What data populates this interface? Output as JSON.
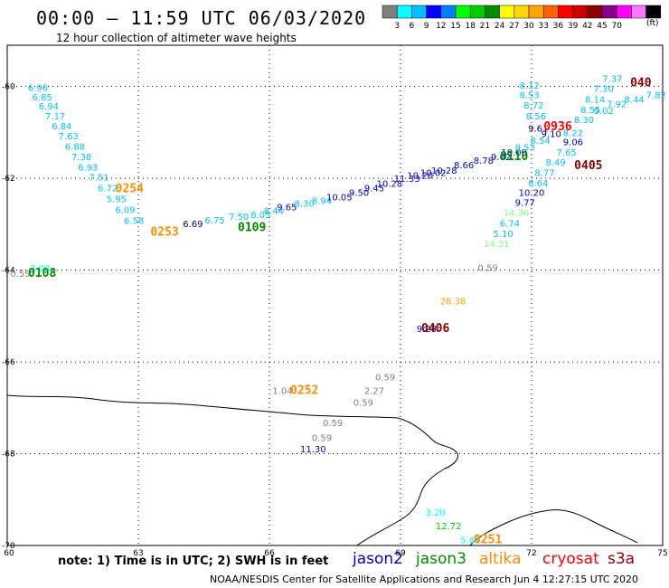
{
  "header": {
    "title": "00:00 – 11:59 UTC 06/03/2020",
    "subtitle": "12 hour collection of altimeter wave heights"
  },
  "colorbar": {
    "colors": [
      "#808080",
      "#00ffff",
      "#00bfff",
      "#0000ff",
      "#0080ff",
      "#00ff00",
      "#00cd00",
      "#008b00",
      "#ffff00",
      "#ffd700",
      "#ffa500",
      "#ff6000",
      "#ff0000",
      "#cd0000",
      "#8b0000",
      "#8b008b",
      "#ff00ff",
      "#ff77ff",
      "#000000"
    ],
    "labels": [
      "3",
      "6",
      "9",
      "12",
      "15",
      "18",
      "21",
      "24",
      "27",
      "30",
      "33",
      "36",
      "39",
      "42",
      "45",
      "70"
    ],
    "unit": "(ft)"
  },
  "axes": {
    "lon_ticks": [
      "60",
      "63",
      "66",
      "69",
      "72",
      "75"
    ],
    "lat_ticks": [
      "-60",
      "-62",
      "-64",
      "-66",
      "-68",
      "-70"
    ],
    "lon_range": [
      60,
      75
    ],
    "lat_range": [
      -70,
      -59.1
    ]
  },
  "footer": {
    "note": "note: 1) Time is in UTC; 2) SWH is in feet",
    "credit": "NOAA/NESDIS Center for Satellite Applications and Research   Jun  4 12:27:15 UTC 2020",
    "missions": [
      {
        "name": "jason2",
        "color": "#0000cd"
      },
      {
        "name": "jason3",
        "color": "#008b00"
      },
      {
        "name": "altika",
        "color": "#ff8c00"
      },
      {
        "name": "cryosat",
        "color": "#ff0000"
      },
      {
        "name": "s3a",
        "color": "#8b0000"
      }
    ]
  },
  "time_labels": [
    {
      "text": "0254",
      "lon": 62.8,
      "lat": -62.3,
      "color": "#ff8c00"
    },
    {
      "text": "0253",
      "lon": 63.6,
      "lat": -63.25,
      "color": "#ff8c00"
    },
    {
      "text": "0109",
      "lon": 65.6,
      "lat": -63.15,
      "color": "#008b00"
    },
    {
      "text": "0108",
      "lon": 60.8,
      "lat": -64.15,
      "color": "#008b00"
    },
    {
      "text": "0110",
      "lon": 71.6,
      "lat": -61.6,
      "color": "#008b00"
    },
    {
      "text": "0936",
      "lon": 72.6,
      "lat": -60.95,
      "color": "#ff0000"
    },
    {
      "text": "0405",
      "lon": 73.3,
      "lat": -61.8,
      "color": "#8b0000"
    },
    {
      "text": "040",
      "lon": 74.5,
      "lat": -60.0,
      "color": "#8b0000"
    },
    {
      "text": "0406",
      "lon": 69.8,
      "lat": -65.35,
      "color": "#8b0000"
    },
    {
      "text": "0252",
      "lon": 66.8,
      "lat": -66.7,
      "color": "#ff8c00"
    },
    {
      "text": "0251",
      "lon": 71.0,
      "lat": -69.95,
      "color": "#ff8c00"
    }
  ],
  "values": [
    {
      "text": "6.96",
      "lon": 60.7,
      "lat": -60.1,
      "color": "#00bfff"
    },
    {
      "text": "6.85",
      "lon": 60.8,
      "lat": -60.3,
      "color": "#00bfff"
    },
    {
      "text": "6.94",
      "lon": 60.95,
      "lat": -60.5,
      "color": "#00bfff"
    },
    {
      "text": "7.17",
      "lon": 61.1,
      "lat": -60.72,
      "color": "#00bfff"
    },
    {
      "text": "6.84",
      "lon": 61.25,
      "lat": -60.93,
      "color": "#00bfff"
    },
    {
      "text": "7.63",
      "lon": 61.4,
      "lat": -61.15,
      "color": "#00bfff"
    },
    {
      "text": "6.88",
      "lon": 61.55,
      "lat": -61.38,
      "color": "#00bfff"
    },
    {
      "text": "7.38",
      "lon": 61.7,
      "lat": -61.6,
      "color": "#00bfff"
    },
    {
      "text": "6.93",
      "lon": 61.85,
      "lat": -61.83,
      "color": "#00bfff"
    },
    {
      "text": "7.51",
      "lon": 62.1,
      "lat": -62.05,
      "color": "#00bfff"
    },
    {
      "text": "6.72",
      "lon": 62.3,
      "lat": -62.28,
      "color": "#00bfff"
    },
    {
      "text": "5.95",
      "lon": 62.5,
      "lat": -62.52,
      "color": "#00bfff"
    },
    {
      "text": "6.09",
      "lon": 62.7,
      "lat": -62.76,
      "color": "#00bfff"
    },
    {
      "text": "6.58",
      "lon": 62.9,
      "lat": -62.99,
      "color": "#00bfff"
    },
    {
      "text": "6.69",
      "lon": 64.25,
      "lat": -63.06,
      "color": "#00008b"
    },
    {
      "text": "6.75",
      "lon": 64.75,
      "lat": -62.98,
      "color": "#00bfff"
    },
    {
      "text": "7.50",
      "lon": 65.3,
      "lat": -62.9,
      "color": "#00bfff"
    },
    {
      "text": "8.05",
      "lon": 65.8,
      "lat": -62.86,
      "color": "#00bfff"
    },
    {
      "text": "8.44",
      "lon": 66.1,
      "lat": -62.78,
      "color": "#00bfff"
    },
    {
      "text": "9.65",
      "lon": 66.4,
      "lat": -62.7,
      "color": "#0000cd"
    },
    {
      "text": "8.30",
      "lon": 66.8,
      "lat": -62.62,
      "color": "#00bfff"
    },
    {
      "text": "8.94",
      "lon": 67.2,
      "lat": -62.56,
      "color": "#00bfff"
    },
    {
      "text": "10.05",
      "lon": 67.6,
      "lat": -62.48,
      "color": "#0000cd"
    },
    {
      "text": "9.50",
      "lon": 68.05,
      "lat": -62.38,
      "color": "#0000cd"
    },
    {
      "text": "9.45",
      "lon": 68.4,
      "lat": -62.28,
      "color": "#0000cd"
    },
    {
      "text": "10.28",
      "lon": 68.75,
      "lat": -62.18,
      "color": "#0000cd"
    },
    {
      "text": "11.33",
      "lon": 69.15,
      "lat": -62.08,
      "color": "#0000cd"
    },
    {
      "text": "10.20",
      "lon": 69.45,
      "lat": -62.01,
      "color": "#0000cd"
    },
    {
      "text": "10.02",
      "lon": 69.75,
      "lat": -61.95,
      "color": "#0000cd"
    },
    {
      "text": "10.28",
      "lon": 70.0,
      "lat": -61.9,
      "color": "#0000cd"
    },
    {
      "text": "8.66",
      "lon": 70.45,
      "lat": -61.78,
      "color": "#0000cd"
    },
    {
      "text": "8.78",
      "lon": 70.9,
      "lat": -61.68,
      "color": "#0000cd"
    },
    {
      "text": "9.02",
      "lon": 71.3,
      "lat": -61.6,
      "color": "#0000cd"
    },
    {
      "text": "10.00",
      "lon": 71.6,
      "lat": -61.5,
      "color": "#0000cd"
    },
    {
      "text": "8.53",
      "lon": 71.85,
      "lat": -61.4,
      "color": "#00bfff"
    },
    {
      "text": "8.54",
      "lon": 72.2,
      "lat": -61.25,
      "color": "#00bfff"
    },
    {
      "text": "9.61",
      "lon": 72.15,
      "lat": -60.98,
      "color": "#00008b"
    },
    {
      "text": "9.10",
      "lon": 72.45,
      "lat": -61.1,
      "color": "#00008b"
    },
    {
      "text": "8.12",
      "lon": 71.95,
      "lat": -60.05,
      "color": "#00bfff"
    },
    {
      "text": "8.53",
      "lon": 71.95,
      "lat": -60.25,
      "color": "#00bfff"
    },
    {
      "text": "8.72",
      "lon": 72.05,
      "lat": -60.48,
      "color": "#00bfff"
    },
    {
      "text": "8.56",
      "lon": 72.1,
      "lat": -60.72,
      "color": "#00bfff"
    },
    {
      "text": "9.06",
      "lon": 72.95,
      "lat": -61.28,
      "color": "#0000cd"
    },
    {
      "text": "7.65",
      "lon": 72.8,
      "lat": -61.5,
      "color": "#00bfff"
    },
    {
      "text": "8.49",
      "lon": 72.55,
      "lat": -61.72,
      "color": "#00bfff"
    },
    {
      "text": "8.77",
      "lon": 72.3,
      "lat": -61.95,
      "color": "#00bfff"
    },
    {
      "text": "8.64",
      "lon": 72.15,
      "lat": -62.17,
      "color": "#00bfff"
    },
    {
      "text": "10.20",
      "lon": 72.0,
      "lat": -62.38,
      "color": "#0000cd"
    },
    {
      "text": "9.77",
      "lon": 71.85,
      "lat": -62.6,
      "color": "#0000cd"
    },
    {
      "text": "14.36",
      "lon": 71.65,
      "lat": -62.82,
      "color": "#7fff7f"
    },
    {
      "text": "6.74",
      "lon": 71.5,
      "lat": -63.05,
      "color": "#00bfff"
    },
    {
      "text": "5.10",
      "lon": 71.35,
      "lat": -63.28,
      "color": "#00bfff"
    },
    {
      "text": "14.31",
      "lon": 71.2,
      "lat": -63.5,
      "color": "#7fff7f"
    },
    {
      "text": "7.37",
      "lon": 73.85,
      "lat": -59.9,
      "color": "#00bfff"
    },
    {
      "text": "7.30",
      "lon": 73.65,
      "lat": -60.12,
      "color": "#00bfff"
    },
    {
      "text": "8.14",
      "lon": 73.45,
      "lat": -60.35,
      "color": "#00bfff"
    },
    {
      "text": "8.44",
      "lon": 74.35,
      "lat": -60.35,
      "color": "#00bfff"
    },
    {
      "text": "7.92",
      "lon": 73.95,
      "lat": -60.45,
      "color": "#00bfff"
    },
    {
      "text": "7.82",
      "lon": 74.85,
      "lat": -60.25,
      "color": "#00bfff"
    },
    {
      "text": "8.55",
      "lon": 73.35,
      "lat": -60.58,
      "color": "#00bfff"
    },
    {
      "text": "9.02",
      "lon": 73.65,
      "lat": -60.6,
      "color": "#00bfff"
    },
    {
      "text": "8.30",
      "lon": 73.2,
      "lat": -60.8,
      "color": "#00bfff"
    },
    {
      "text": "8.22",
      "lon": 72.95,
      "lat": -61.08,
      "color": "#00bfff"
    },
    {
      "text": "3.00",
      "lon": 60.75,
      "lat": -64.03,
      "color": "#00ffff"
    },
    {
      "text": "0.59",
      "lon": 60.3,
      "lat": -64.15,
      "color": "#808080"
    },
    {
      "text": "0.59",
      "lon": 71.0,
      "lat": -64.02,
      "color": "#808080"
    },
    {
      "text": "28.38",
      "lon": 70.2,
      "lat": -64.75,
      "color": "#ffa500"
    },
    {
      "text": "9.28",
      "lon": 69.6,
      "lat": -65.35,
      "color": "#0000cd"
    },
    {
      "text": "0.59",
      "lon": 68.65,
      "lat": -66.4,
      "color": "#808080"
    },
    {
      "text": "1.04",
      "lon": 66.3,
      "lat": -66.7,
      "color": "#808080"
    },
    {
      "text": "2.27",
      "lon": 68.4,
      "lat": -66.7,
      "color": "#808080"
    },
    {
      "text": "0.59",
      "lon": 68.15,
      "lat": -66.95,
      "color": "#808080"
    },
    {
      "text": "0.59",
      "lon": 67.45,
      "lat": -67.4,
      "color": "#808080"
    },
    {
      "text": "0.59",
      "lon": 67.2,
      "lat": -67.72,
      "color": "#808080"
    },
    {
      "text": "11.30",
      "lon": 67.0,
      "lat": -67.97,
      "color": "#0000cd"
    },
    {
      "text": "3.20",
      "lon": 69.8,
      "lat": -69.35,
      "color": "#00ffff"
    },
    {
      "text": "12.72",
      "lon": 70.1,
      "lat": -69.65,
      "color": "#00cd00"
    },
    {
      "text": "5.81",
      "lon": 70.6,
      "lat": -69.95,
      "color": "#00ffff"
    }
  ]
}
